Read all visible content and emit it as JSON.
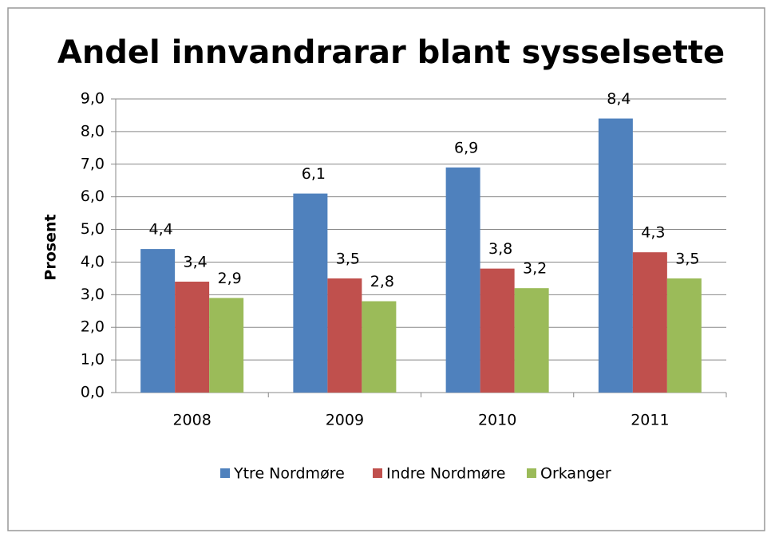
{
  "chart_data": {
    "type": "bar",
    "title": "Andel innvandrarar blant sysselsette",
    "y_label": "Prosent",
    "categories": [
      "2008",
      "2009",
      "2010",
      "2011"
    ],
    "series": [
      {
        "name": "Ytre Nordmøre",
        "color": "#4f81bd",
        "values": [
          4.4,
          6.1,
          6.9,
          8.4
        ],
        "value_labels": [
          "4,4",
          "6,1",
          "6,9",
          "8,4"
        ]
      },
      {
        "name": "Indre Nordmøre",
        "color": "#c0504d",
        "values": [
          3.4,
          3.5,
          3.8,
          4.3
        ],
        "value_labels": [
          "3,4",
          "3,5",
          "3,8",
          "4,3"
        ]
      },
      {
        "name": "Orkanger",
        "color": "#9bbb59",
        "values": [
          2.9,
          2.8,
          3.2,
          3.5
        ],
        "value_labels": [
          "2,9",
          "2,8",
          "3,2",
          "3,5"
        ]
      }
    ],
    "ylim": [
      0,
      9
    ],
    "yticks": [
      {
        "value": 0,
        "label": "0,0"
      },
      {
        "value": 1,
        "label": "1,0"
      },
      {
        "value": 2,
        "label": "2,0"
      },
      {
        "value": 3,
        "label": "3,0"
      },
      {
        "value": 4,
        "label": "4,0"
      },
      {
        "value": 5,
        "label": "5,0"
      },
      {
        "value": 6,
        "label": "6,0"
      },
      {
        "value": 7,
        "label": "7,0"
      },
      {
        "value": 8,
        "label": "8,0"
      },
      {
        "value": 9,
        "label": "9,0"
      }
    ],
    "grid": true,
    "legend": "bottom"
  }
}
